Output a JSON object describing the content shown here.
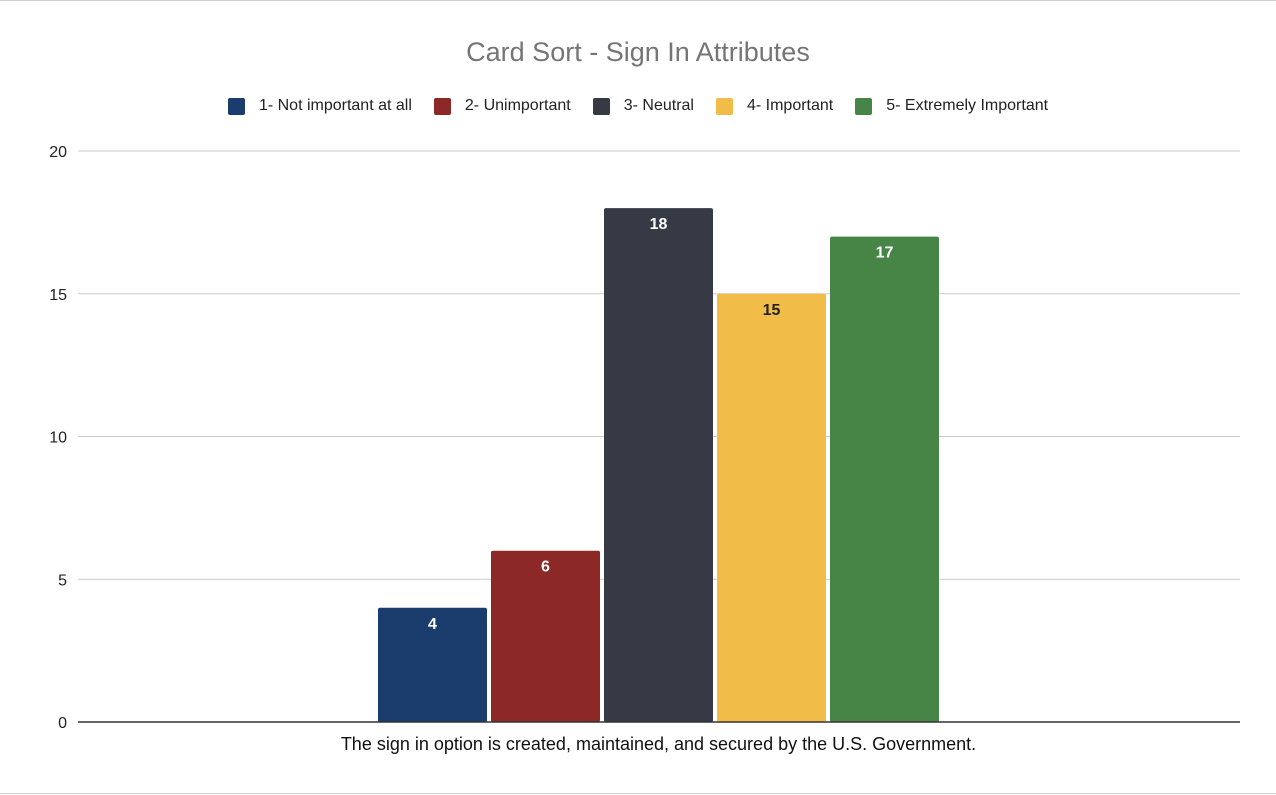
{
  "chart_data": {
    "type": "bar",
    "title": "Card Sort - Sign In Attributes",
    "categories": [
      "The sign in option is created, maintained, and secured by the U.S. Government."
    ],
    "series": [
      {
        "name": "1- Not important at all",
        "color": "#1a3d6e",
        "values": [
          4
        ],
        "label_color": "#ffffff"
      },
      {
        "name": "2- Unimportant",
        "color": "#8c2926",
        "values": [
          6
        ],
        "label_color": "#ffffff"
      },
      {
        "name": "3- Neutral",
        "color": "#363a45",
        "values": [
          18
        ],
        "label_color": "#ffffff"
      },
      {
        "name": "4- Important",
        "color": "#f2bc49",
        "values": [
          15
        ],
        "label_color": "#222222"
      },
      {
        "name": "5- Extremely Important",
        "color": "#478546",
        "values": [
          17
        ],
        "label_color": "#ffffff"
      }
    ],
    "ylim": [
      0,
      20
    ],
    "yticks": [
      "0",
      "5",
      "10",
      "15",
      "20"
    ],
    "xlabel": "",
    "ylabel": "",
    "grid": true,
    "legend_position": "top"
  }
}
